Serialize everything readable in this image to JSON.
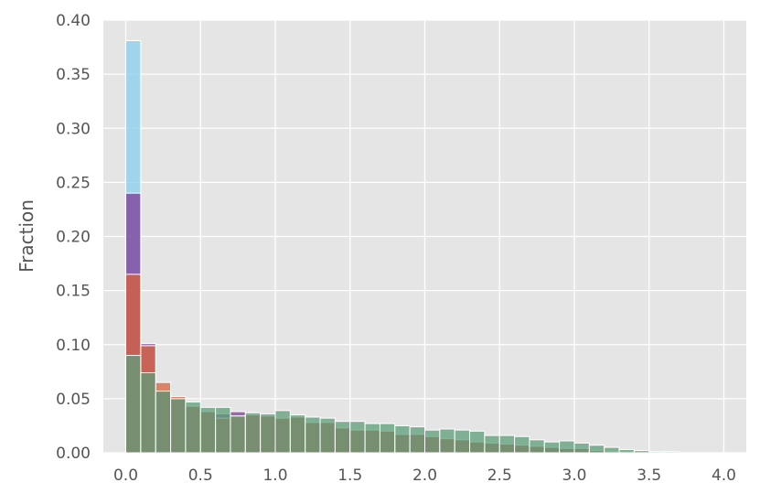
{
  "chart_data": {
    "type": "histogram",
    "ylabel": "Fraction",
    "bins": [
      0,
      0.1,
      0.2,
      0.3,
      0.4,
      0.5,
      0.6,
      0.7,
      0.8,
      0.9,
      1,
      1.1,
      1.2,
      1.3,
      1.4,
      1.5,
      1.6,
      1.7,
      1.8,
      1.9,
      2,
      2.1,
      2.2,
      2.3,
      2.4,
      2.5,
      2.6,
      2.7,
      2.8,
      2.9,
      3,
      3.1,
      3.2,
      3.3,
      3.4,
      3.5,
      3.6,
      3.7,
      3.8,
      3.9,
      4
    ],
    "series": [
      {
        "color": "#87ceeb",
        "values": [
          0.381,
          0.073,
          0.055,
          0.048,
          0.043,
          0.038,
          0.032,
          0.034,
          0.035,
          0.034,
          0.032,
          0.033,
          0.028,
          0.028,
          0.023,
          0.021,
          0.021,
          0.02,
          0.017,
          0.017,
          0.015,
          0.013,
          0.012,
          0.01,
          0.009,
          0.008,
          0.007,
          0.006,
          0.005,
          0.004,
          0.004,
          0.002,
          0.001,
          0.001,
          0,
          0,
          0,
          0,
          0,
          0
        ]
      },
      {
        "color": "#7d3c98",
        "values": [
          0.24,
          0.101,
          0.057,
          0.05,
          0.043,
          0.038,
          0.036,
          0.038,
          0.035,
          0.034,
          0.032,
          0.033,
          0.028,
          0.028,
          0.023,
          0.021,
          0.021,
          0.02,
          0.017,
          0.017,
          0.015,
          0.013,
          0.012,
          0.01,
          0.009,
          0.008,
          0.007,
          0.006,
          0.005,
          0.004,
          0.004,
          0.002,
          0.001,
          0.001,
          0,
          0,
          0,
          0,
          0,
          0
        ]
      },
      {
        "color": "#d9603b",
        "values": [
          0.165,
          0.099,
          0.065,
          0.052,
          0.043,
          0.038,
          0.032,
          0.034,
          0.035,
          0.034,
          0.032,
          0.033,
          0.028,
          0.028,
          0.023,
          0.021,
          0.021,
          0.02,
          0.017,
          0.017,
          0.015,
          0.013,
          0.012,
          0.01,
          0.009,
          0.008,
          0.007,
          0.006,
          0.005,
          0.004,
          0.004,
          0.002,
          0.001,
          0.001,
          0,
          0,
          0,
          0,
          0,
          0
        ]
      },
      {
        "color": "#5e9e78",
        "values": [
          0.09,
          0.074,
          0.057,
          0.05,
          0.047,
          0.042,
          0.042,
          0.034,
          0.037,
          0.036,
          0.039,
          0.035,
          0.033,
          0.032,
          0.029,
          0.029,
          0.027,
          0.027,
          0.025,
          0.024,
          0.021,
          0.022,
          0.021,
          0.02,
          0.016,
          0.016,
          0.015,
          0.012,
          0.01,
          0.011,
          0.009,
          0.007,
          0.005,
          0.003,
          0.002,
          0.001,
          0.001,
          0,
          0,
          0
        ]
      }
    ],
    "opacity": 0.75,
    "xlim": [
      -0.15,
      4.15
    ],
    "ylim": [
      0,
      0.4
    ],
    "xticks": [
      {
        "value": 0,
        "label": "0.0"
      },
      {
        "value": 0.5,
        "label": "0.5"
      },
      {
        "value": 1,
        "label": "1.0"
      },
      {
        "value": 1.5,
        "label": "1.5"
      },
      {
        "value": 2,
        "label": "2.0"
      },
      {
        "value": 2.5,
        "label": "2.5"
      },
      {
        "value": 3,
        "label": "3.0"
      },
      {
        "value": 3.5,
        "label": "3.5"
      },
      {
        "value": 4,
        "label": "4.0"
      }
    ],
    "yticks": [
      {
        "value": 0,
        "label": "0.00"
      },
      {
        "value": 0.05,
        "label": "0.05"
      },
      {
        "value": 0.1,
        "label": "0.10"
      },
      {
        "value": 0.15,
        "label": "0.15"
      },
      {
        "value": 0.2,
        "label": "0.20"
      },
      {
        "value": 0.25,
        "label": "0.25"
      },
      {
        "value": 0.3,
        "label": "0.30"
      },
      {
        "value": 0.35,
        "label": "0.35"
      },
      {
        "value": 0.4,
        "label": "0.40"
      }
    ],
    "grid": true
  }
}
